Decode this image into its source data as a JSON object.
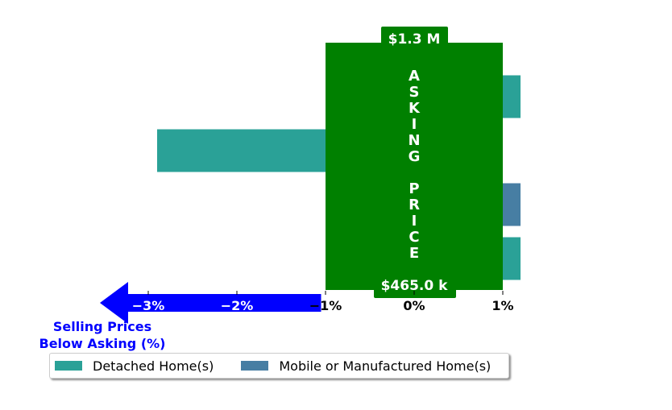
{
  "chart_data": {
    "type": "bar",
    "orientation": "horizontal",
    "xlabel": "Selling Prices\nBelow Asking (%)",
    "xlim": [
      -3.3,
      1.5
    ],
    "xticks": [
      -3,
      -2,
      -1,
      0,
      1
    ],
    "xtick_labels": [
      "−3%",
      "−2%",
      "−1%",
      "0%",
      "1%"
    ],
    "asking_price": {
      "label": "ASKING PRICE",
      "letters": [
        "A",
        "S",
        "K",
        "I",
        "N",
        "G",
        " ",
        "P",
        "R",
        "I",
        "C",
        "E"
      ],
      "high": "$1.3 M",
      "low": "$465.0 k",
      "color": "#008000"
    },
    "series": [
      {
        "name": "Detached Home(s)",
        "color": "#2aa197"
      },
      {
        "name": "Mobile or Manufactured Home(s)",
        "color": "#477ea3"
      }
    ],
    "bars": [
      {
        "series": "Detached Home(s)",
        "value": 1.2
      },
      {
        "series": "Detached Home(s)",
        "value": -2.9
      },
      {
        "series": "Mobile or Manufactured Home(s)",
        "value": 1.2
      },
      {
        "series": "Detached Home(s)",
        "value": 1.2
      }
    ],
    "arrow_color": "#0000ff",
    "legend": "bottom"
  }
}
